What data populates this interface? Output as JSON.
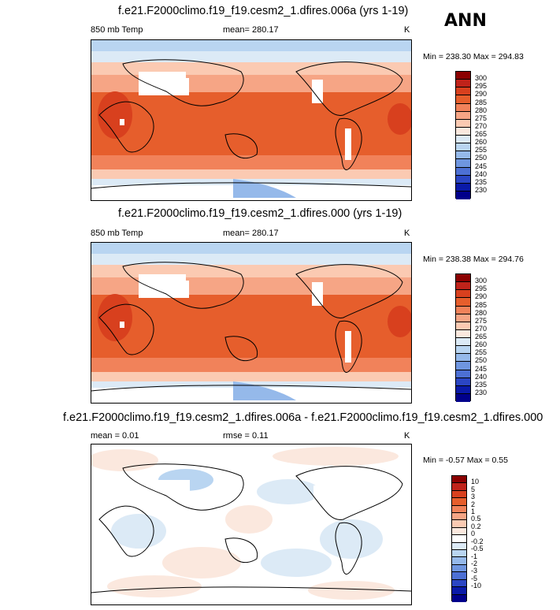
{
  "ann_label": "ANN",
  "panels": [
    {
      "title": "f.e21.F2000climo.f19_f19.cesm2_1.dfires.006a (yrs 1-19)",
      "left_label": "850 mb Temp",
      "center_label": "mean= 280.17",
      "units": "K",
      "minmax": "Min = 238.30 Max = 294.83",
      "levels": [
        "300",
        "295",
        "290",
        "285",
        "280",
        "275",
        "270",
        "265",
        "260",
        "255",
        "250",
        "245",
        "240",
        "235",
        "230"
      ],
      "colors": [
        "#8b0000",
        "#c0231a",
        "#d8401e",
        "#e65e2c",
        "#f1825a",
        "#f6a585",
        "#fbcab2",
        "#fbe8de",
        "#dceaf6",
        "#b9d5f1",
        "#95b9ea",
        "#6f96e0",
        "#4d70d4",
        "#2b46c4",
        "#0a1aa8",
        "#00008b"
      ]
    },
    {
      "title": "f.e21.F2000climo.f19_f19.cesm2_1.dfires.000 (yrs 1-19)",
      "left_label": "850 mb Temp",
      "center_label": "mean= 280.17",
      "units": "K",
      "minmax": "Min = 238.38 Max = 294.76",
      "levels": [
        "300",
        "295",
        "290",
        "285",
        "280",
        "275",
        "270",
        "265",
        "260",
        "255",
        "250",
        "245",
        "240",
        "235",
        "230"
      ],
      "colors": [
        "#8b0000",
        "#c0231a",
        "#d8401e",
        "#e65e2c",
        "#f1825a",
        "#f6a585",
        "#fbcab2",
        "#fbe8de",
        "#dceaf6",
        "#b9d5f1",
        "#95b9ea",
        "#6f96e0",
        "#4d70d4",
        "#2b46c4",
        "#0a1aa8",
        "#00008b"
      ]
    },
    {
      "title": "f.e21.F2000climo.f19_f19.cesm2_1.dfires.006a - f.e21.F2000climo.f19_f19.cesm2_1.dfires.000",
      "left_label": "mean =  0.01",
      "center_label": "rmse =  0.11",
      "units": "K",
      "minmax": "Min = -0.57 Max =  0.55",
      "levels": [
        "10",
        "5",
        "3",
        "2",
        "1",
        "0.5",
        "0.2",
        "0",
        "-0.2",
        "-0.5",
        "-1",
        "-2",
        "-3",
        "-5",
        "-10"
      ],
      "colors": [
        "#8b0000",
        "#c0231a",
        "#d8401e",
        "#e65e2c",
        "#f1825a",
        "#f6a585",
        "#fbcab2",
        "#fbe8de",
        "#ffffff",
        "#dceaf6",
        "#b9d5f1",
        "#95b9ea",
        "#6f96e0",
        "#4d70d4",
        "#2b46c4",
        "#0a1aa8",
        "#00008b"
      ]
    }
  ]
}
